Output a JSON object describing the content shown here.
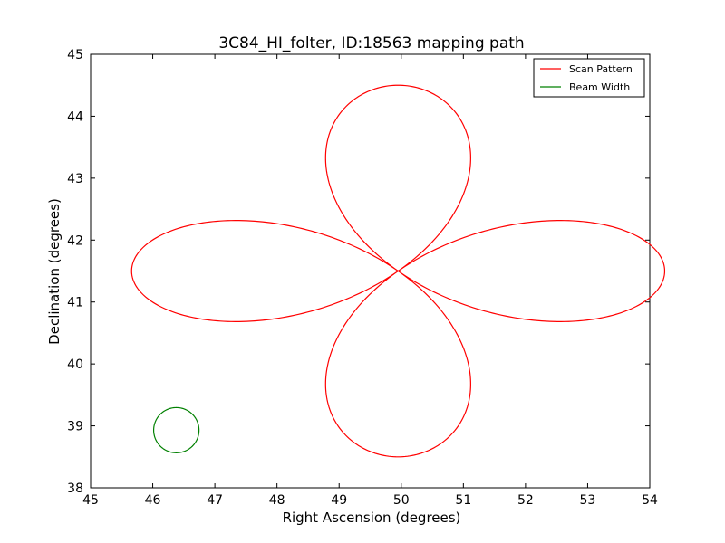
{
  "chart_data": {
    "type": "line",
    "title": "3C84_HI_folter, ID:18563 mapping path",
    "xlabel": "Right Ascension (degrees)",
    "ylabel": "Declination (degrees)",
    "xlim": [
      45,
      54
    ],
    "ylim": [
      38,
      45
    ],
    "x_ticks": [
      45,
      46,
      47,
      48,
      49,
      50,
      51,
      52,
      53,
      54
    ],
    "y_ticks": [
      38,
      39,
      40,
      41,
      42,
      43,
      44,
      45
    ],
    "grid": false,
    "legend_position": "top-right",
    "series": [
      {
        "name": "Scan Pattern",
        "color": "#ff0000",
        "petal_center": [
          49.95,
          41.5
        ],
        "petal_extent_deg": 3.0,
        "x": [],
        "y": []
      },
      {
        "name": "Beam Width",
        "color": "#008000",
        "center": [
          46.38,
          38.93
        ],
        "diameter_deg": 0.73,
        "x": [],
        "y": []
      }
    ]
  }
}
